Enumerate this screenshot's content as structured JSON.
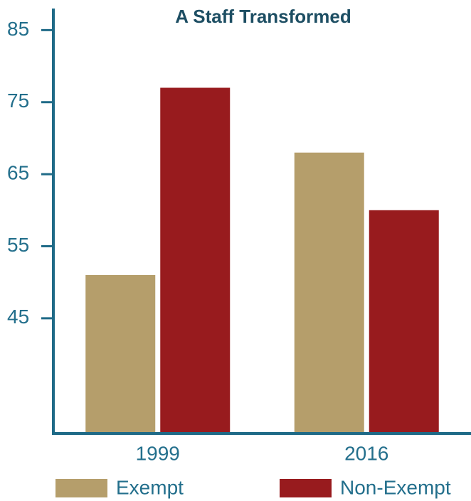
{
  "chart_data": {
    "type": "bar",
    "title": "A Staff Transformed",
    "categories": [
      "1999",
      "2016"
    ],
    "series": [
      {
        "name": "Exempt",
        "color": "#b59e6b",
        "values": [
          51,
          68
        ]
      },
      {
        "name": "Non-Exempt",
        "color": "#981b1e",
        "values": [
          77,
          60
        ]
      }
    ],
    "ylim": [
      29,
      88
    ],
    "yticks": [
      45,
      55,
      65,
      75,
      85
    ],
    "grid": false,
    "legend": "bottom"
  }
}
